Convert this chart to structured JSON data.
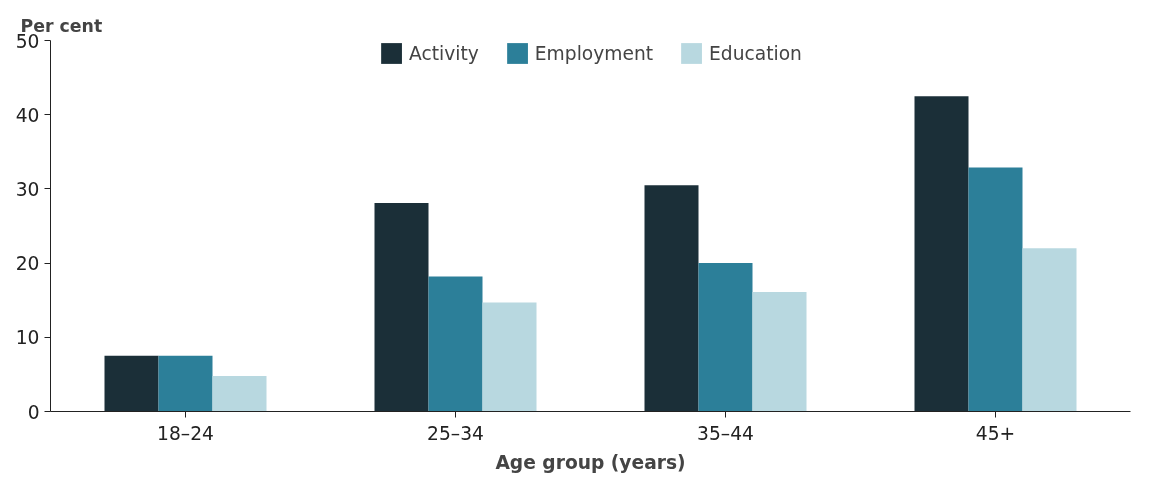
{
  "chart_data": {
    "type": "bar",
    "ylabel": "Per cent",
    "xlabel": "Age group (years)",
    "categories": [
      "18–24",
      "25–34",
      "35–44",
      "45+"
    ],
    "series": [
      {
        "name": "Activity",
        "color": "#1b2f38",
        "values": [
          7.5,
          28.1,
          30.5,
          42.5
        ]
      },
      {
        "name": "Employment",
        "color": "#2c7f99",
        "values": [
          7.5,
          18.2,
          20.0,
          32.9
        ]
      },
      {
        "name": "Education",
        "color": "#b8d8e0",
        "values": [
          4.8,
          14.7,
          16.1,
          22.0
        ]
      }
    ],
    "ylim": [
      0,
      50
    ],
    "yticks": [
      0,
      10,
      20,
      30,
      40,
      50
    ],
    "grid": false,
    "legend": "top"
  }
}
